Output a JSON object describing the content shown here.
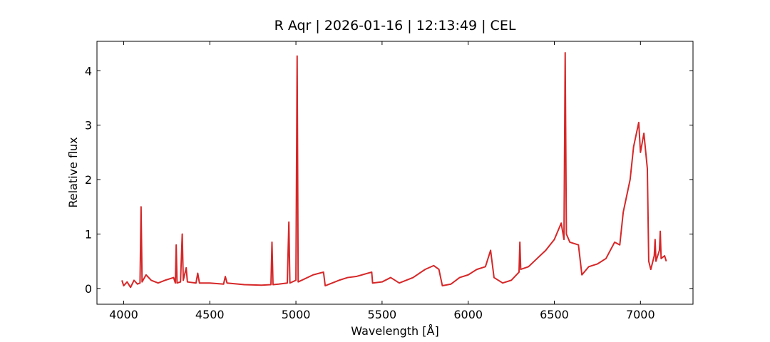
{
  "chart_data": {
    "type": "line",
    "title": "R Aqr | 2026-01-16 | 12:13:49 | CEL",
    "xlabel": "Wavelength [Å]",
    "ylabel": "Relative flux",
    "xlim": [
      3845,
      7305
    ],
    "ylim": [
      -0.29,
      4.54
    ],
    "xticks": [
      4000,
      4500,
      5000,
      5500,
      6000,
      6500,
      7000
    ],
    "yticks": [
      0,
      1,
      2,
      3,
      4
    ],
    "grid": false,
    "x": [
      3990,
      4000,
      4020,
      4040,
      4060,
      4080,
      4095,
      4101,
      4107,
      4130,
      4160,
      4200,
      4240,
      4290,
      4300,
      4305,
      4310,
      4330,
      4340,
      4346,
      4363,
      4370,
      4420,
      4430,
      4440,
      4500,
      4580,
      4590,
      4600,
      4700,
      4800,
      4855,
      4861,
      4867,
      4900,
      4950,
      4959,
      4965,
      5000,
      5007,
      5013,
      5100,
      5160,
      5170,
      5250,
      5300,
      5350,
      5440,
      5445,
      5500,
      5550,
      5600,
      5680,
      5750,
      5800,
      5830,
      5850,
      5900,
      5950,
      6000,
      6050,
      6100,
      6130,
      6150,
      6200,
      6250,
      6295,
      6300,
      6305,
      6350,
      6400,
      6450,
      6500,
      6540,
      6556,
      6563,
      6570,
      6590,
      6640,
      6660,
      6700,
      6750,
      6800,
      6850,
      6880,
      6900,
      6940,
      6960,
      6980,
      6990,
      7000,
      7020,
      7040,
      7048,
      7060,
      7080,
      7085,
      7090,
      7110,
      7115,
      7120,
      7140,
      7150
    ],
    "series": [
      {
        "name": "R Aqr",
        "color": "#d62728",
        "values": [
          0.15,
          0.05,
          0.12,
          0.02,
          0.15,
          0.08,
          0.1,
          1.5,
          0.12,
          0.25,
          0.15,
          0.1,
          0.15,
          0.2,
          0.1,
          0.8,
          0.1,
          0.12,
          1.0,
          0.15,
          0.38,
          0.12,
          0.1,
          0.28,
          0.1,
          0.1,
          0.08,
          0.22,
          0.1,
          0.07,
          0.06,
          0.07,
          0.85,
          0.07,
          0.08,
          0.1,
          1.22,
          0.1,
          0.15,
          4.27,
          0.12,
          0.25,
          0.3,
          0.05,
          0.15,
          0.2,
          0.22,
          0.3,
          0.1,
          0.12,
          0.2,
          0.1,
          0.2,
          0.35,
          0.42,
          0.35,
          0.05,
          0.08,
          0.2,
          0.25,
          0.35,
          0.4,
          0.7,
          0.2,
          0.1,
          0.15,
          0.3,
          0.85,
          0.35,
          0.4,
          0.55,
          0.7,
          0.9,
          1.2,
          0.9,
          4.33,
          1.0,
          0.85,
          0.8,
          0.25,
          0.4,
          0.45,
          0.55,
          0.85,
          0.8,
          1.4,
          2.0,
          2.6,
          2.9,
          3.05,
          2.5,
          2.85,
          2.2,
          0.5,
          0.35,
          0.6,
          0.9,
          0.5,
          0.7,
          1.05,
          0.55,
          0.6,
          0.5
        ]
      }
    ]
  }
}
